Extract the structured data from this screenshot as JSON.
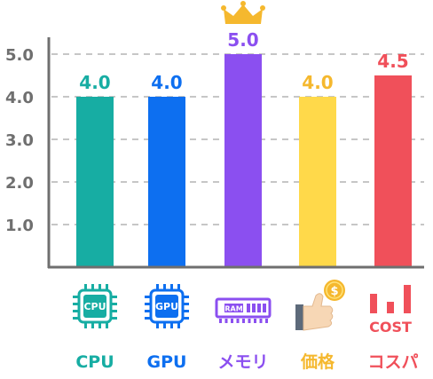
{
  "chart_data": {
    "type": "bar",
    "categories": [
      "CPU",
      "GPU",
      "メモリ",
      "価格",
      "コスパ"
    ],
    "values": [
      4.0,
      4.0,
      5.0,
      4.0,
      4.5
    ],
    "value_labels": [
      "4.0",
      "4.0",
      "5.0",
      "4.0",
      "4.5"
    ],
    "colors": [
      "#17ada3",
      "#0d6ff0",
      "#8b4ff0",
      "#ffd94a",
      "#f0505a"
    ],
    "label_colors": [
      "#17ada3",
      "#0d6ff0",
      "#8b4ff0",
      "#f5b82e",
      "#f0505a"
    ],
    "yticks": [
      "1.0",
      "2.0",
      "3.0",
      "4.0",
      "5.0"
    ],
    "ylim": [
      0,
      5.5
    ],
    "grid": "horizontal-dashed",
    "icons": [
      {
        "name": "cpu-chip-icon",
        "text": "CPU"
      },
      {
        "name": "gpu-chip-icon",
        "text": "GPU"
      },
      {
        "name": "ram-module-icon",
        "text": "RAM"
      },
      {
        "name": "thumbs-up-coin-icon",
        "text": "$"
      },
      {
        "name": "cost-bars-icon",
        "text": "COST"
      }
    ],
    "highlight": {
      "index": 2,
      "icon": "crown-icon",
      "color": "#f5b82e"
    }
  }
}
